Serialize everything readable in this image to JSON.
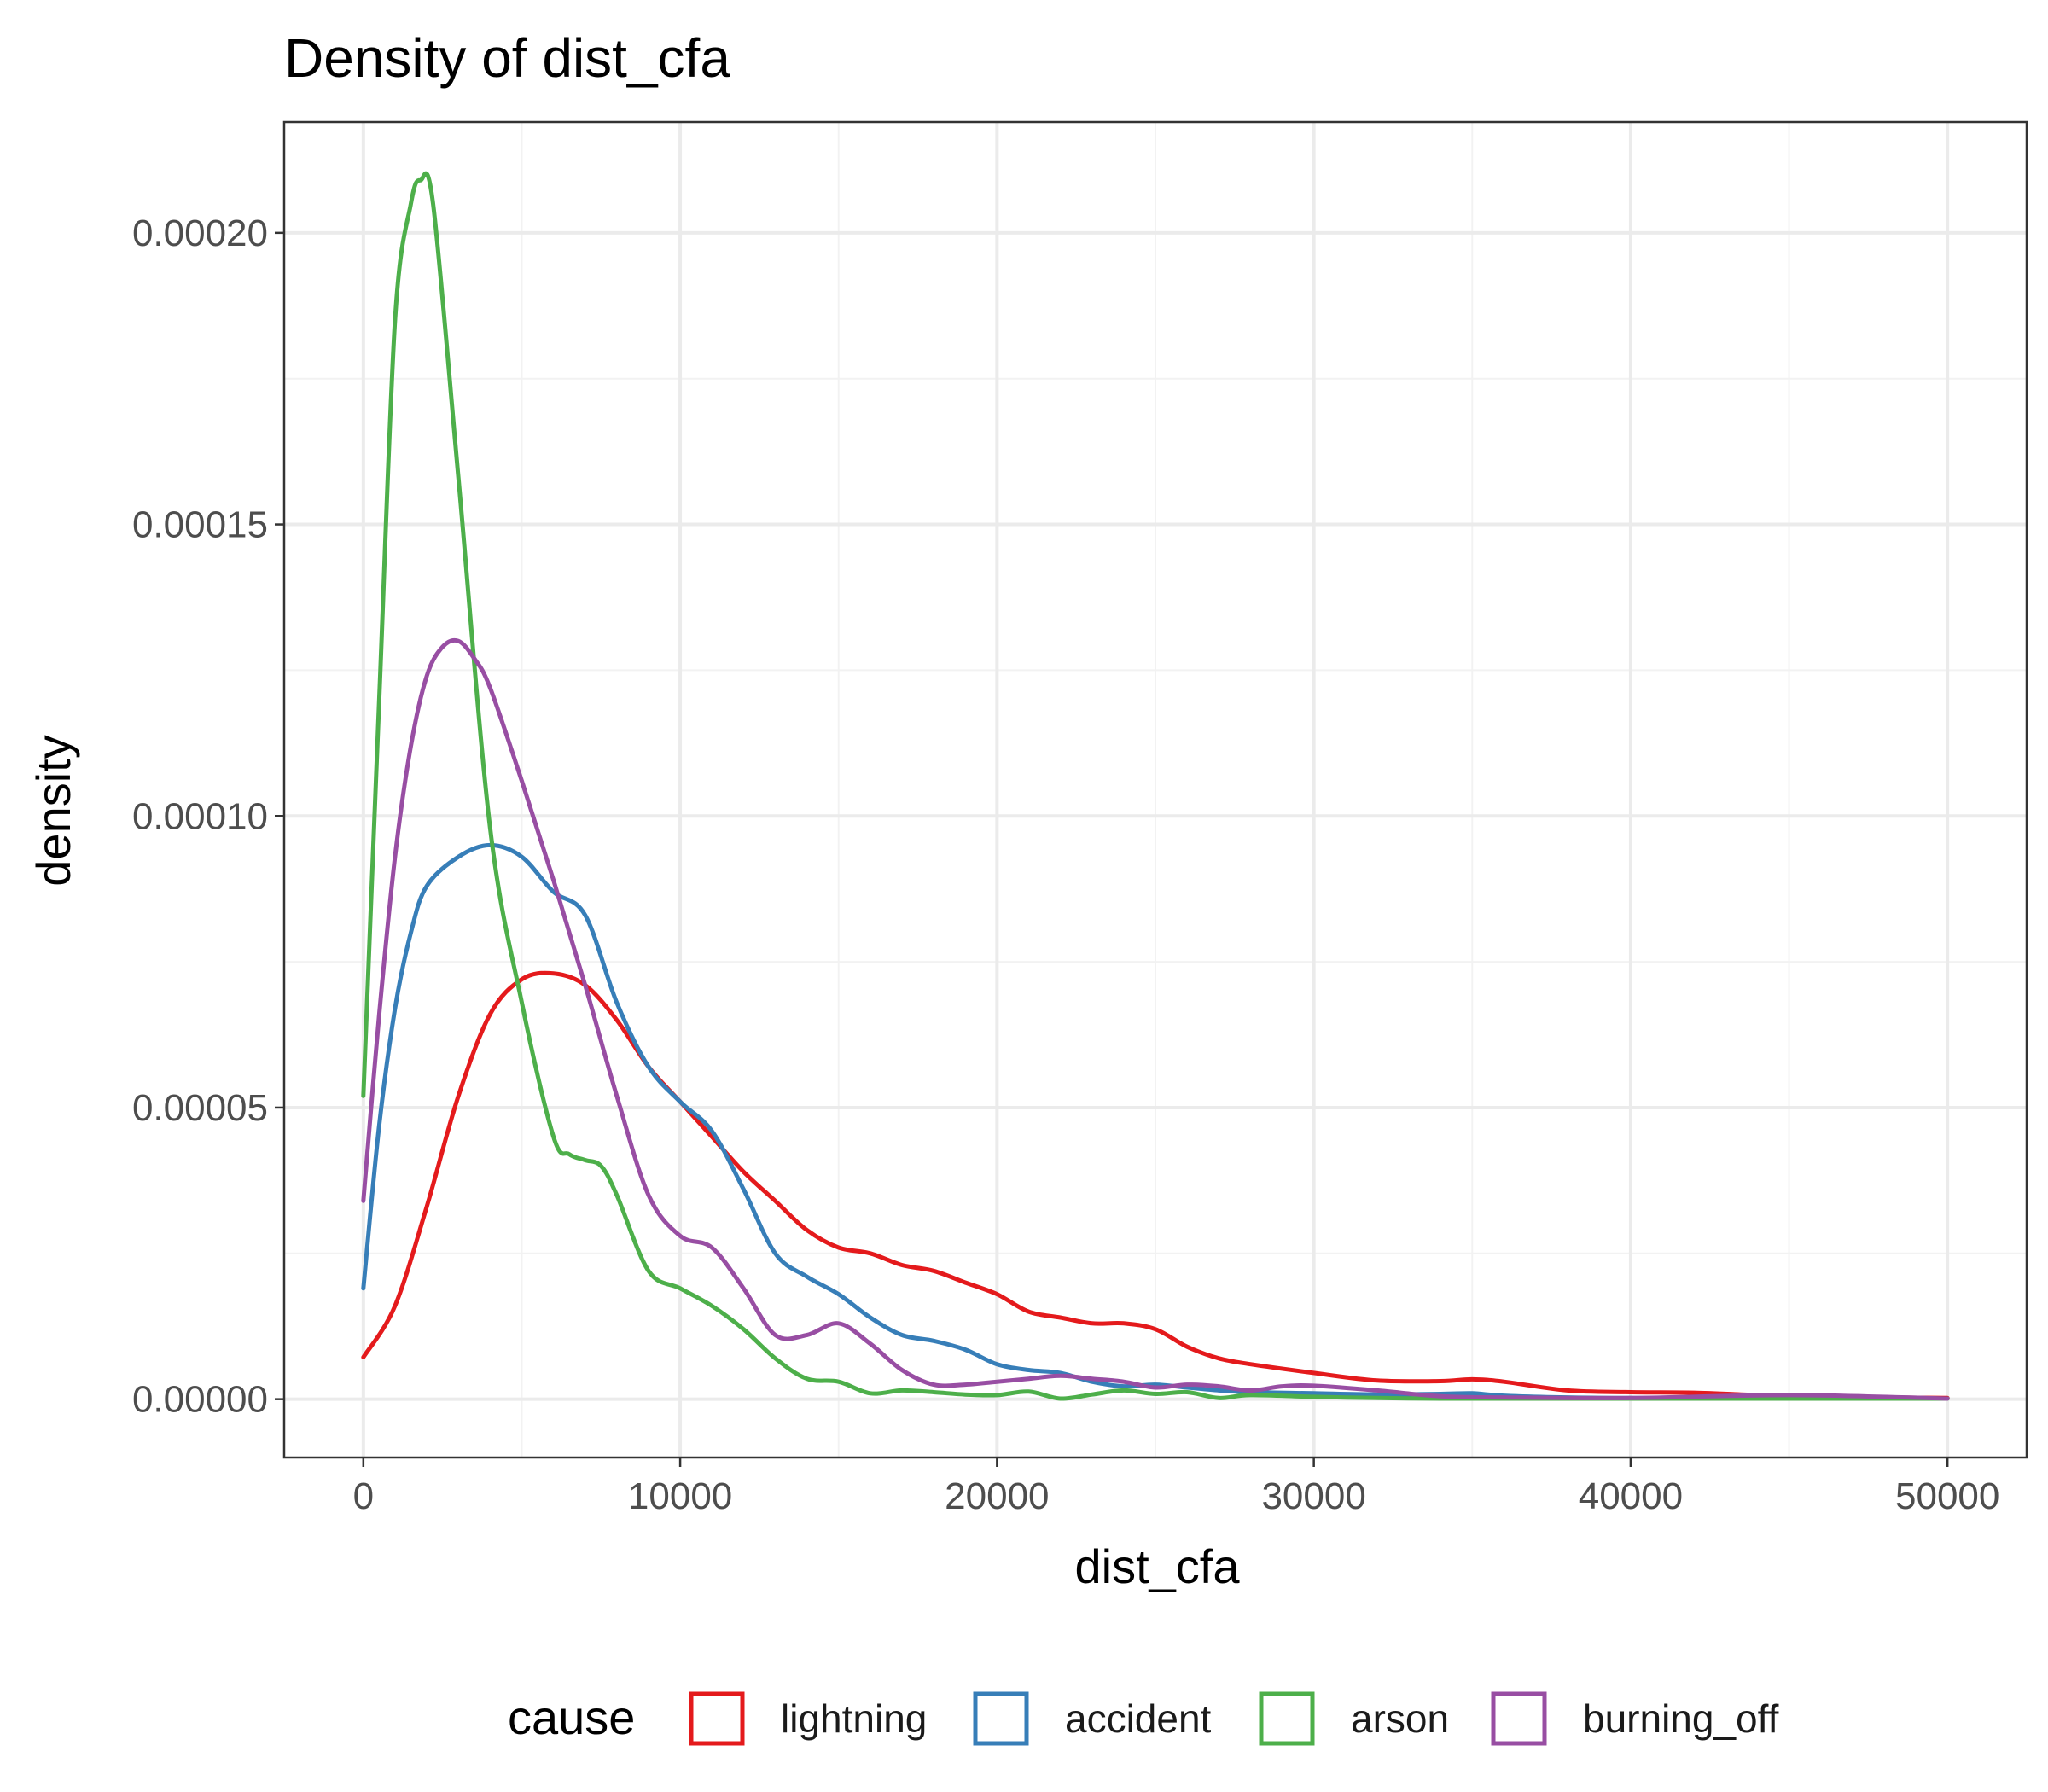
{
  "chart_data": {
    "type": "line",
    "title": "Density of dist_cfa",
    "xlabel": "dist_cfa",
    "ylabel": "density",
    "xlim": [
      -2500,
      52500
    ],
    "ylim": [
      -1e-05,
      0.000219
    ],
    "x_ticks": [
      0,
      10000,
      20000,
      30000,
      40000,
      50000
    ],
    "x_tick_labels": [
      "0",
      "10000",
      "20000",
      "30000",
      "40000",
      "50000"
    ],
    "y_ticks": [
      0,
      5e-05,
      0.0001,
      0.00015,
      0.0002
    ],
    "y_tick_labels": [
      "0.00000",
      "0.00005",
      "0.00010",
      "0.00015",
      "0.00020"
    ],
    "grid": true,
    "legend": {
      "title": "cause",
      "position": "bottom"
    },
    "series": [
      {
        "name": "lightning",
        "color": "#E41A1C",
        "x": [
          0,
          1000,
          2000,
          3000,
          4000,
          5000,
          6000,
          7000,
          8000,
          9000,
          10000,
          11000,
          12000,
          13000,
          14000,
          15000,
          16000,
          17000,
          18000,
          19000,
          20000,
          21000,
          22000,
          23000,
          24000,
          25000,
          26000,
          27000,
          28000,
          30000,
          32000,
          34000,
          35000,
          36000,
          38000,
          40000,
          42000,
          44000,
          46000,
          48000,
          50000
        ],
        "y": [
          7.2e-06,
          1.6e-05,
          3.3e-05,
          5.2e-05,
          6.6e-05,
          7.2e-05,
          7.3e-05,
          7.1e-05,
          6.5e-05,
          5.7e-05,
          5.1e-05,
          4.5e-05,
          3.9e-05,
          3.4e-05,
          2.9e-05,
          2.6e-05,
          2.5e-05,
          2.3e-05,
          2.2e-05,
          2e-05,
          1.8e-05,
          1.5e-05,
          1.4e-05,
          1.3e-05,
          1.3e-05,
          1.2e-05,
          9e-06,
          7e-06,
          6e-06,
          4.5e-06,
          3.2e-06,
          3.1e-06,
          3.4e-06,
          3e-06,
          1.5e-06,
          1.2e-06,
          1.1e-06,
          7e-07,
          4e-07,
          3e-07,
          2e-07
        ]
      },
      {
        "name": "accident",
        "color": "#377EB8",
        "x": [
          0,
          500,
          1000,
          1500,
          2000,
          3000,
          4000,
          5000,
          6000,
          7000,
          8000,
          9000,
          10000,
          11000,
          12000,
          13000,
          14000,
          15000,
          16000,
          17000,
          18000,
          19000,
          20000,
          21000,
          22000,
          23000,
          24000,
          25000,
          26000,
          27000,
          28000,
          30000,
          32000,
          34000,
          35000,
          36000,
          38000,
          40000,
          45000,
          50000
        ],
        "y": [
          1.9e-05,
          4.7e-05,
          6.7e-05,
          8e-05,
          8.8e-05,
          9.3e-05,
          9.5e-05,
          9.3e-05,
          8.7e-05,
          8.3e-05,
          6.8e-05,
          5.7e-05,
          5.1e-05,
          4.6e-05,
          3.6e-05,
          2.5e-05,
          2.1e-05,
          1.8e-05,
          1.4e-05,
          1.1e-05,
          1e-05,
          8.5e-06,
          6e-06,
          5e-06,
          4.5e-06,
          3e-06,
          2.2e-06,
          2.5e-06,
          2e-06,
          1.5e-06,
          1.2e-06,
          1e-06,
          8e-07,
          9e-07,
          1e-06,
          6e-07,
          3e-07,
          2e-07,
          1e-07,
          1e-07
        ]
      },
      {
        "name": "arson",
        "color": "#4DAF4A",
        "x": [
          0,
          500,
          1000,
          1500,
          1800,
          2200,
          3000,
          4000,
          5000,
          6000,
          6500,
          7000,
          7500,
          8000,
          9000,
          10000,
          11000,
          12000,
          13000,
          14000,
          15000,
          16000,
          17000,
          18000,
          19000,
          20000,
          21000,
          22000,
          23000,
          24000,
          25000,
          26000,
          27000,
          28000,
          30000,
          32000,
          34000,
          36000,
          40000,
          45000,
          50000
        ],
        "y": [
          5.2e-05,
          0.00012,
          0.000185,
          0.000205,
          0.000209,
          0.000205,
          0.000158,
          9.8e-05,
          6.8e-05,
          4.5e-05,
          4.2e-05,
          4.1e-05,
          4e-05,
          3.5e-05,
          2.2e-05,
          1.9e-05,
          1.6e-05,
          1.2e-05,
          7e-06,
          3.5e-06,
          3e-06,
          1e-06,
          1.5e-06,
          1.2e-06,
          8e-07,
          7e-07,
          1.3e-06,
          1e-07,
          8e-07,
          1.5e-06,
          9e-07,
          1.2e-06,
          2e-07,
          7e-07,
          4e-07,
          2e-07,
          1e-07,
          1e-07,
          1e-07,
          1e-07,
          1e-07
        ]
      },
      {
        "name": "burning_off",
        "color": "#984EA3",
        "x": [
          0,
          500,
          1000,
          1500,
          2000,
          2500,
          3000,
          3500,
          4000,
          5000,
          6000,
          7000,
          8000,
          9000,
          10000,
          11000,
          12000,
          13000,
          14000,
          15000,
          16000,
          17000,
          18000,
          19000,
          20000,
          21000,
          22000,
          23000,
          24000,
          25000,
          26000,
          27000,
          28000,
          29000,
          30000,
          32000,
          34000,
          36000,
          40000,
          45000,
          50000
        ],
        "y": [
          3.4e-05,
          6.6e-05,
          9.3e-05,
          0.000112,
          0.000124,
          0.000129,
          0.00013,
          0.000127,
          0.000122,
          0.000106,
          8.9e-05,
          7.1e-05,
          5.2e-05,
          3.5e-05,
          2.8e-05,
          2.6e-05,
          1.9e-05,
          1.1e-05,
          1.1e-05,
          1.3e-05,
          9.5e-06,
          5e-06,
          2.5e-06,
          2.5e-06,
          3e-06,
          3.5e-06,
          4e-06,
          3.5e-06,
          3e-06,
          2e-06,
          2.5e-06,
          2.2e-06,
          1.5e-06,
          2.2e-06,
          2.3e-06,
          1.5e-06,
          5e-07,
          3e-07,
          2e-07,
          7e-07,
          1e-07
        ]
      }
    ]
  }
}
